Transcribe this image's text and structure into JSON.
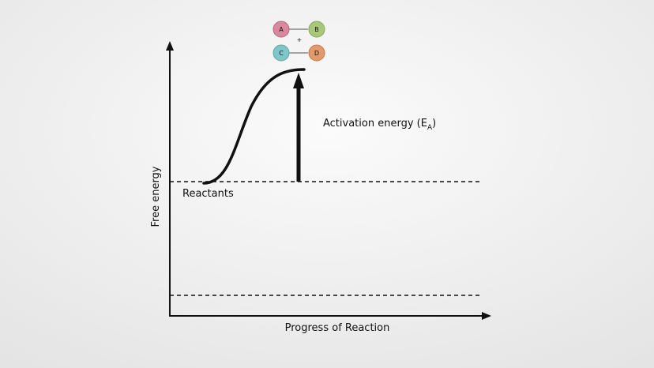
{
  "diagram": {
    "y_axis_label": "Free energy",
    "x_axis_label": "Progress of Reaction",
    "reactants_label": "Reactants",
    "activation_label": {
      "text": "Activation energy (E",
      "subscript": "A",
      "close": ")"
    },
    "molecules": [
      {
        "label": "A"
      },
      {
        "label": "B"
      },
      {
        "label": "C"
      },
      {
        "label": "D"
      }
    ],
    "plus": "+"
  }
}
